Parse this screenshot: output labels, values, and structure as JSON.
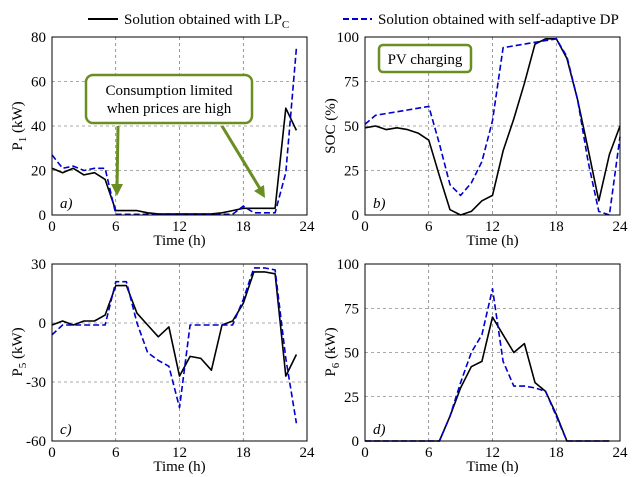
{
  "chart_data": [
    {
      "type": "line",
      "panel_label": "a)",
      "ylabel": "P1 (kW)",
      "ylabel_main": "P",
      "ylabel_sub": "1",
      "ylabel_unit": "(kW)",
      "xlabel": "Time (h)",
      "xlim": [
        0,
        24
      ],
      "ylim": [
        0,
        80
      ],
      "xticks": [
        "0",
        "6",
        "12",
        "18",
        "24"
      ],
      "yticks": [
        "0",
        "20",
        "40",
        "60",
        "80"
      ],
      "grid": true,
      "series": [
        {
          "name": "Solution obtained with LPC",
          "x": [
            0,
            1,
            2,
            3,
            4,
            5,
            6,
            7,
            8,
            9,
            10,
            11,
            12,
            13,
            14,
            15,
            16,
            17,
            18,
            19,
            20,
            21,
            22,
            23
          ],
          "values": [
            21,
            19,
            21,
            18,
            19,
            16,
            2,
            2,
            2,
            1,
            0.5,
            0.5,
            0.5,
            0.5,
            0.5,
            0.5,
            1,
            2,
            3,
            3,
            3,
            3,
            48,
            38
          ]
        },
        {
          "name": "Solution obtained with self-adaptive DP",
          "x": [
            0,
            1,
            2,
            3,
            4,
            5,
            6,
            7,
            8,
            9,
            10,
            11,
            12,
            13,
            14,
            15,
            16,
            17,
            18,
            19,
            20,
            21,
            22,
            23
          ],
          "values": [
            27,
            21,
            22,
            20,
            21,
            21,
            0.3,
            0.3,
            0.3,
            0.3,
            0.3,
            0.3,
            0.3,
            0.3,
            0.3,
            0.3,
            0.3,
            0.3,
            4,
            1,
            1,
            1,
            19,
            75
          ]
        }
      ],
      "annotations": [
        {
          "text_line1": "Consumption limited",
          "text_line2": "when prices are high"
        }
      ]
    },
    {
      "type": "line",
      "panel_label": "b)",
      "ylabel": "SOC (%)",
      "ylabel_main": "SOC (%)",
      "xlabel": "Time (h)",
      "xlim": [
        0,
        24
      ],
      "ylim": [
        0,
        100
      ],
      "xticks": [
        "0",
        "6",
        "12",
        "18",
        "24"
      ],
      "yticks": [
        "0",
        "25",
        "50",
        "75",
        "100"
      ],
      "grid": true,
      "series": [
        {
          "name": "Solution obtained with LPC",
          "x": [
            0,
            1,
            2,
            3,
            4,
            5,
            6,
            7,
            8,
            9,
            10,
            11,
            12,
            13,
            14,
            15,
            16,
            17,
            18,
            19,
            20,
            21,
            22,
            23,
            24
          ],
          "values": [
            49,
            50,
            48,
            49,
            48,
            46,
            42,
            22,
            3,
            0,
            2,
            8,
            11,
            36,
            54,
            74,
            96,
            99,
            99,
            88,
            65,
            37,
            8,
            34,
            50
          ]
        },
        {
          "name": "Solution obtained with self-adaptive DP",
          "x": [
            0,
            1,
            2,
            3,
            4,
            5,
            6,
            7,
            8,
            9,
            10,
            11,
            12,
            13,
            14,
            15,
            16,
            17,
            18,
            19,
            20,
            21,
            22,
            23,
            24
          ],
          "values": [
            51,
            56,
            57,
            58,
            59,
            60,
            61,
            40,
            17,
            11,
            18,
            30,
            53,
            94,
            95,
            96,
            97,
            98,
            99,
            89,
            65,
            30,
            2,
            0,
            44
          ]
        }
      ],
      "annotations": [
        {
          "text": "PV charging"
        }
      ]
    },
    {
      "type": "line",
      "panel_label": "c)",
      "ylabel": "P5 (kW)",
      "ylabel_main": "P",
      "ylabel_sub": "5",
      "ylabel_unit": "(kW)",
      "xlabel": "Time (h)",
      "xlim": [
        0,
        24
      ],
      "ylim": [
        -60,
        30
      ],
      "xticks": [
        "0",
        "6",
        "12",
        "18",
        "24"
      ],
      "yticks": [
        "-60",
        "-30",
        "0",
        "30"
      ],
      "grid": true,
      "series": [
        {
          "name": "Solution obtained with LPC",
          "x": [
            0,
            1,
            2,
            3,
            4,
            5,
            6,
            7,
            8,
            9,
            10,
            11,
            12,
            13,
            14,
            15,
            16,
            17,
            18,
            19,
            20,
            21,
            22,
            23
          ],
          "values": [
            -1,
            1,
            -1,
            1,
            1,
            4,
            19,
            19,
            5,
            -1,
            -7,
            -2,
            -27,
            -17,
            -18,
            -24,
            -1,
            1,
            10,
            26,
            26,
            25,
            -27,
            -16
          ]
        },
        {
          "name": "Solution obtained with self-adaptive DP",
          "x": [
            0,
            1,
            2,
            3,
            4,
            5,
            6,
            7,
            8,
            9,
            10,
            11,
            12,
            13,
            14,
            15,
            16,
            17,
            18,
            19,
            20,
            21,
            22,
            23
          ],
          "values": [
            -6,
            -1,
            -1,
            -1,
            -1,
            -1,
            21,
            21,
            0,
            -15,
            -19,
            -22,
            -43,
            -1,
            -1,
            -1,
            -1,
            -1,
            12,
            28,
            28,
            27,
            -18,
            -51
          ]
        }
      ]
    },
    {
      "type": "line",
      "panel_label": "d)",
      "ylabel": "P6 (kW)",
      "ylabel_main": "P",
      "ylabel_sub": "6",
      "ylabel_unit": "(kW)",
      "xlabel": "Time (h)",
      "xlim": [
        0,
        24
      ],
      "ylim": [
        0,
        100
      ],
      "xticks": [
        "0",
        "6",
        "12",
        "18",
        "24"
      ],
      "yticks": [
        "0",
        "25",
        "50",
        "75",
        "100"
      ],
      "grid": true,
      "series": [
        {
          "name": "Solution obtained with LPC",
          "x": [
            0,
            1,
            2,
            3,
            4,
            5,
            6,
            7,
            8,
            9,
            10,
            11,
            12,
            13,
            14,
            15,
            16,
            17,
            18,
            19,
            20,
            21,
            22,
            23
          ],
          "values": [
            0,
            0,
            0,
            0,
            0,
            0,
            0,
            0,
            14,
            30,
            42,
            45,
            70,
            60,
            50,
            55,
            33,
            28,
            15,
            0,
            0,
            0,
            0,
            0
          ]
        },
        {
          "name": "Solution obtained with self-adaptive DP",
          "x": [
            0,
            1,
            2,
            3,
            4,
            5,
            6,
            7,
            8,
            9,
            10,
            11,
            12,
            13,
            14,
            15,
            16,
            17,
            18,
            19,
            20,
            21,
            22,
            23
          ],
          "values": [
            0,
            0,
            0,
            0,
            0,
            0,
            0,
            0,
            14,
            33,
            50,
            60,
            86,
            45,
            31,
            31,
            30,
            28,
            14,
            0,
            0,
            0,
            0,
            0
          ]
        }
      ]
    }
  ],
  "legend": {
    "entry1_prefix": "Solution obtained with LP",
    "entry1_sub": "C",
    "entry2": "Solution obtained with self-adaptive DP"
  },
  "colors": {
    "series_lpc": "#000000",
    "series_dp": "#0000cc",
    "grid": "#555555",
    "annotation_border": "#6b8e23",
    "annotation_fill": "#ffffff"
  }
}
